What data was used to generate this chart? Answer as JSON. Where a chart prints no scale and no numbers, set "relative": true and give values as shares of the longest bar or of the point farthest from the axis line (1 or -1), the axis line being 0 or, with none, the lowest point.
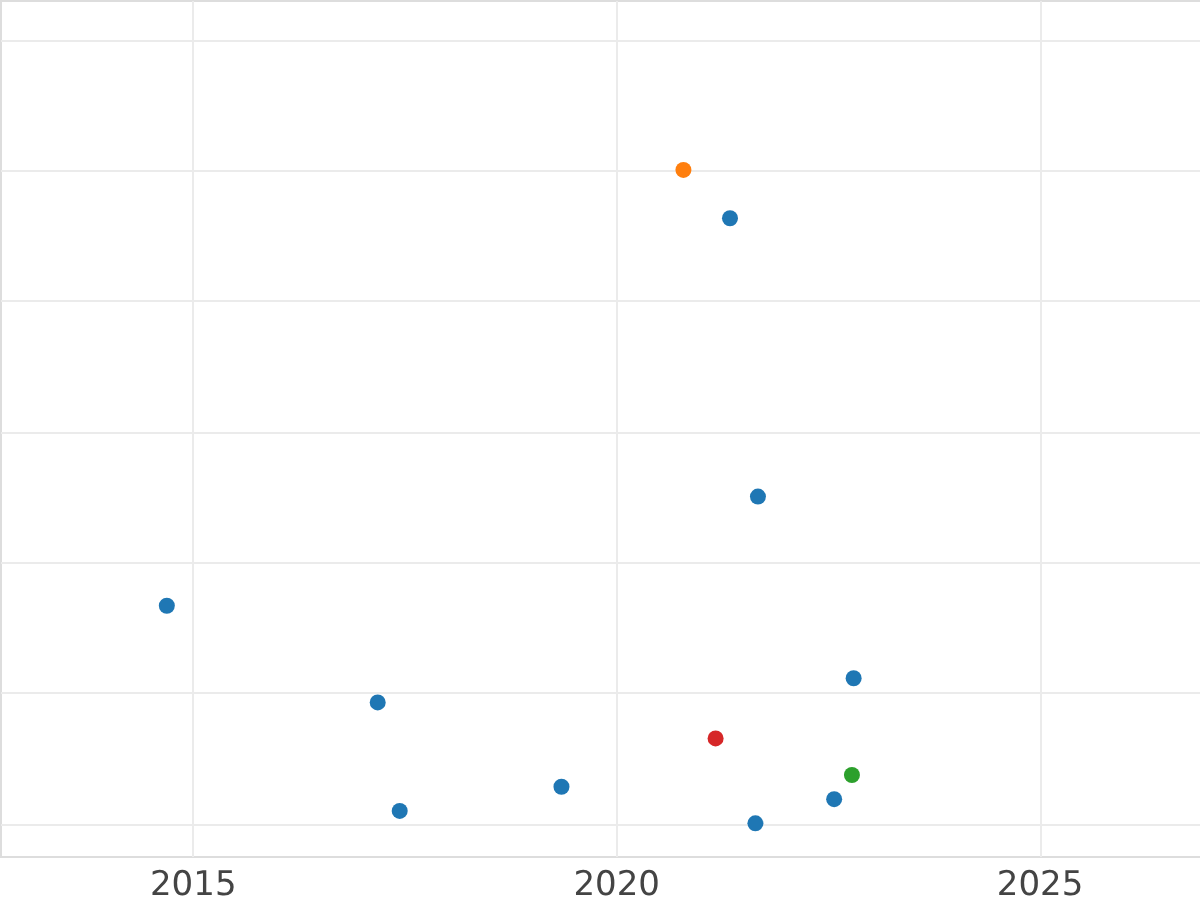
{
  "chart_data": {
    "type": "scatter",
    "relative": true,
    "grid": true,
    "marker": "circle",
    "tick_labels": "x",
    "xlim": [
      2012.73,
      2026.9
    ],
    "xticks": [
      2015,
      2020,
      2025
    ],
    "series": [
      {
        "color": "#1f77b4",
        "x": [
          2021.35,
          2021.68,
          2014.7,
          2017.19,
          2022.81,
          2022.58,
          2019.36,
          2017.45,
          2021.65
        ],
        "values": [
          0.926,
          0.5,
          0.333,
          0.185,
          0.222,
          0.037,
          0.056,
          0.019,
          0
        ]
      },
      {
        "color": "#ff7f0e",
        "x": [
          2020.8
        ],
        "values": [
          1.0
        ]
      },
      {
        "color": "#d62728",
        "x": [
          2021.18
        ],
        "values": [
          0.13
        ]
      },
      {
        "color": "#2ca02c",
        "x": [
          2022.79
        ],
        "values": [
          0.074
        ]
      }
    ]
  }
}
